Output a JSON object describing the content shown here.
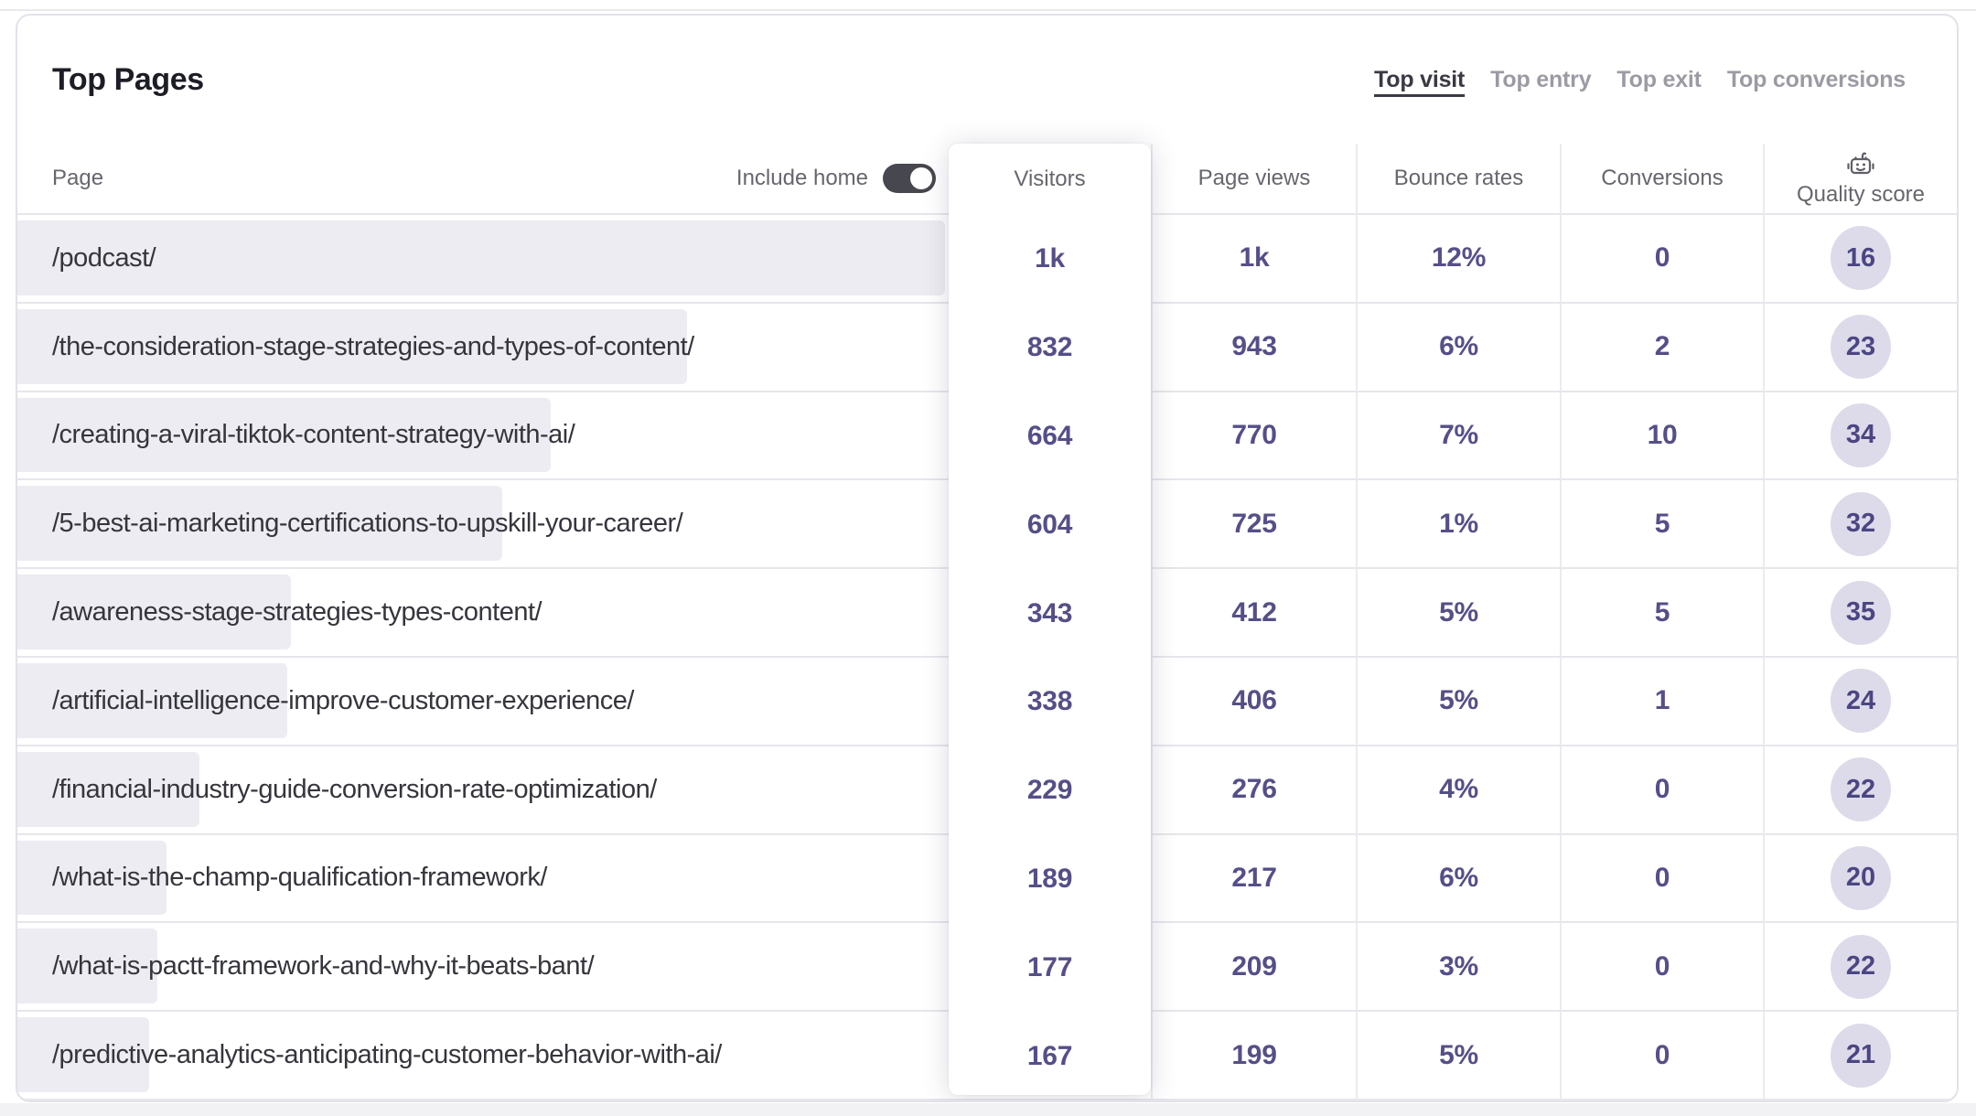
{
  "card": {
    "title": "Top Pages",
    "tabs": [
      {
        "label": "Top visit",
        "active": true
      },
      {
        "label": "Top entry",
        "active": false
      },
      {
        "label": "Top exit",
        "active": false
      },
      {
        "label": "Top conversions",
        "active": false
      }
    ],
    "table": {
      "page_header": "Page",
      "include_home_label": "Include home",
      "include_home_on": true,
      "columns": {
        "visitors": "Visitors",
        "page_views": "Page views",
        "bounce_rates": "Bounce rates",
        "conversions": "Conversions",
        "quality_score": "Quality score"
      },
      "quality_icon": "robot-icon",
      "rows": [
        {
          "page": "/podcast/",
          "visitors": "1k",
          "page_views": "1k",
          "bounce_rate": "12%",
          "conversions": "0",
          "quality_score": "16",
          "bar_pct": 100
        },
        {
          "page": "/the-consideration-stage-strategies-and-types-of-content/",
          "visitors": "832",
          "page_views": "943",
          "bounce_rate": "6%",
          "conversions": "2",
          "quality_score": "23",
          "bar_pct": 72.3
        },
        {
          "page": "/creating-a-viral-tiktok-content-strategy-with-ai/",
          "visitors": "664",
          "page_views": "770",
          "bounce_rate": "7%",
          "conversions": "10",
          "quality_score": "34",
          "bar_pct": 57.7
        },
        {
          "page": "/5-best-ai-marketing-certifications-to-upskill-your-career/",
          "visitors": "604",
          "page_views": "725",
          "bounce_rate": "1%",
          "conversions": "5",
          "quality_score": "32",
          "bar_pct": 52.5
        },
        {
          "page": "/awareness-stage-strategies-types-content/",
          "visitors": "343",
          "page_views": "412",
          "bounce_rate": "5%",
          "conversions": "5",
          "quality_score": "35",
          "bar_pct": 29.8
        },
        {
          "page": "/artificial-intelligence-improve-customer-experience/",
          "visitors": "338",
          "page_views": "406",
          "bounce_rate": "5%",
          "conversions": "1",
          "quality_score": "24",
          "bar_pct": 29.4
        },
        {
          "page": "/financial-industry-guide-conversion-rate-optimization/",
          "visitors": "229",
          "page_views": "276",
          "bounce_rate": "4%",
          "conversions": "0",
          "quality_score": "22",
          "bar_pct": 19.9
        },
        {
          "page": "/what-is-the-champ-qualification-framework/",
          "visitors": "189",
          "page_views": "217",
          "bounce_rate": "6%",
          "conversions": "0",
          "quality_score": "20",
          "bar_pct": 16.4
        },
        {
          "page": "/what-is-pactt-framework-and-why-it-beats-bant/",
          "visitors": "177",
          "page_views": "209",
          "bounce_rate": "3%",
          "conversions": "0",
          "quality_score": "22",
          "bar_pct": 15.4
        },
        {
          "page": "/predictive-analytics-anticipating-customer-behavior-with-ai/",
          "visitors": "167",
          "page_views": "199",
          "bounce_rate": "5%",
          "conversions": "0",
          "quality_score": "21",
          "bar_pct": 14.5
        }
      ]
    }
  },
  "colors": {
    "card_border": "#E2E2EA",
    "title_text": "#1D1D26",
    "tab_active": "#3A3A44",
    "tab_inactive": "#9B9BA4",
    "header_text": "#66666E",
    "url_text": "#35353D",
    "bar_fill": "#EDECF2",
    "value_text": "#554F88",
    "badge_bg": "#DDDBE9",
    "badge_text": "#4B4683",
    "row_border": "#E6E6EB",
    "col_border": "#EBEBF0",
    "toggle_on": "#47474F"
  }
}
